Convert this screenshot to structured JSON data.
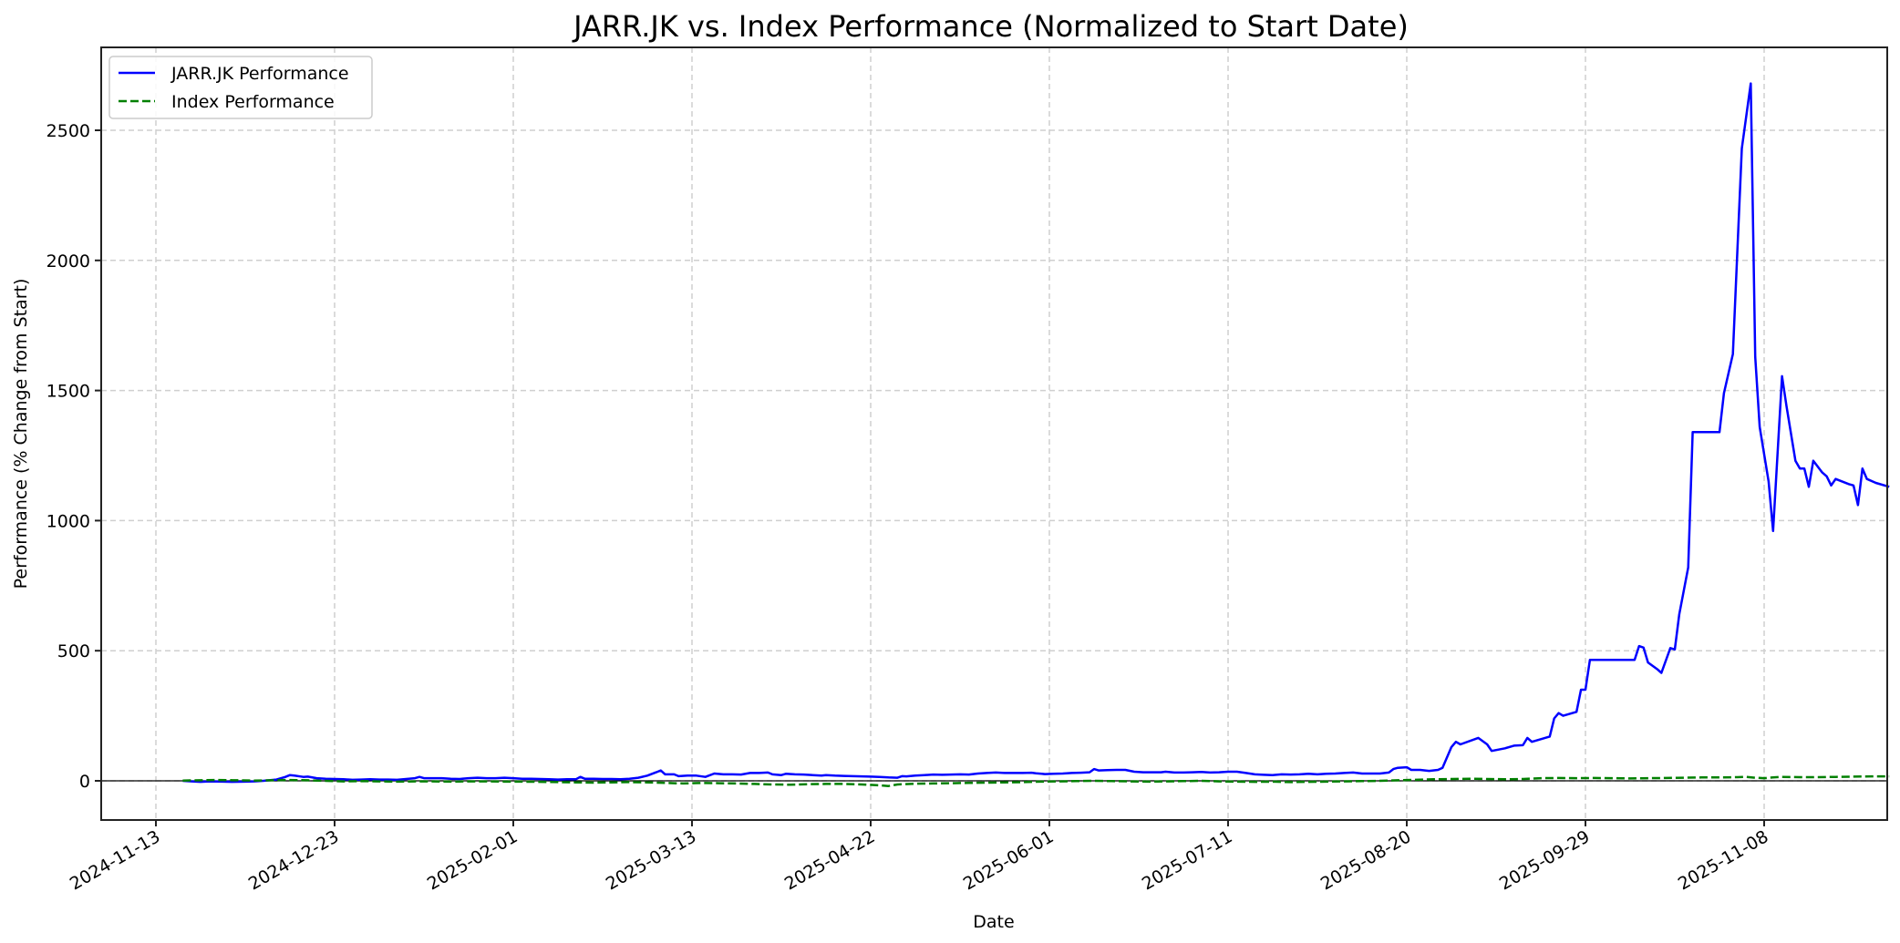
{
  "chart_data": {
    "type": "line",
    "title": "JARR.JK vs. Index Performance (Normalized to Start Date)",
    "xlabel": "Date",
    "ylabel": "Performance (% Change from Start)",
    "x_origin_date": "2024-11-13",
    "x_unit": "days since 2024-11-13",
    "xlim_days": [
      -9,
      396
    ],
    "ylim": [
      -150,
      2850
    ],
    "x_ticks": [
      {
        "label": "2024-11-13",
        "day": 0
      },
      {
        "label": "2024-12-23",
        "day": 40
      },
      {
        "label": "2025-02-01",
        "day": 80
      },
      {
        "label": "2025-03-13",
        "day": 120
      },
      {
        "label": "2025-04-22",
        "day": 160
      },
      {
        "label": "2025-06-01",
        "day": 200
      },
      {
        "label": "2025-07-11",
        "day": 240
      },
      {
        "label": "2025-08-20",
        "day": 280
      },
      {
        "label": "2025-09-29",
        "day": 320
      },
      {
        "label": "2025-11-08",
        "day": 360
      }
    ],
    "y_ticks": [
      0,
      500,
      1000,
      1500,
      2000,
      2500
    ],
    "grid": true,
    "zero_line": true,
    "legend_position": "upper left",
    "series": [
      {
        "name": "JARR.JK Performance",
        "color": "#0000ff",
        "style": "solid",
        "points": [
          [
            6,
            0
          ],
          [
            8,
            -2
          ],
          [
            10,
            -4
          ],
          [
            12,
            -2
          ],
          [
            15,
            -3
          ],
          [
            17,
            -4
          ],
          [
            20,
            -3
          ],
          [
            22,
            -2
          ],
          [
            24,
            0
          ],
          [
            27,
            5
          ],
          [
            29,
            15
          ],
          [
            30,
            22
          ],
          [
            31,
            20
          ],
          [
            33,
            15
          ],
          [
            34,
            16
          ],
          [
            36,
            10
          ],
          [
            38,
            8
          ],
          [
            40,
            7
          ],
          [
            42,
            6
          ],
          [
            44,
            4
          ],
          [
            46,
            5
          ],
          [
            48,
            6
          ],
          [
            50,
            5
          ],
          [
            52,
            5
          ],
          [
            54,
            4
          ],
          [
            56,
            7
          ],
          [
            58,
            10
          ],
          [
            59,
            15
          ],
          [
            60,
            10
          ],
          [
            62,
            10
          ],
          [
            64,
            10
          ],
          [
            66,
            8
          ],
          [
            68,
            7
          ],
          [
            70,
            10
          ],
          [
            72,
            12
          ],
          [
            74,
            10
          ],
          [
            76,
            10
          ],
          [
            78,
            12
          ],
          [
            80,
            10
          ],
          [
            82,
            8
          ],
          [
            84,
            8
          ],
          [
            86,
            7
          ],
          [
            88,
            6
          ],
          [
            90,
            5
          ],
          [
            92,
            6
          ],
          [
            94,
            6
          ],
          [
            95,
            15
          ],
          [
            96,
            8
          ],
          [
            98,
            8
          ],
          [
            100,
            7
          ],
          [
            102,
            7
          ],
          [
            104,
            6
          ],
          [
            106,
            8
          ],
          [
            108,
            12
          ],
          [
            110,
            20
          ],
          [
            112,
            33
          ],
          [
            113,
            40
          ],
          [
            114,
            25
          ],
          [
            116,
            25
          ],
          [
            117,
            18
          ],
          [
            119,
            20
          ],
          [
            121,
            20
          ],
          [
            123,
            15
          ],
          [
            125,
            28
          ],
          [
            127,
            25
          ],
          [
            129,
            25
          ],
          [
            131,
            24
          ],
          [
            133,
            30
          ],
          [
            135,
            30
          ],
          [
            137,
            32
          ],
          [
            138,
            25
          ],
          [
            140,
            22
          ],
          [
            141,
            27
          ],
          [
            143,
            25
          ],
          [
            145,
            24
          ],
          [
            147,
            22
          ],
          [
            149,
            20
          ],
          [
            150,
            22
          ],
          [
            152,
            20
          ],
          [
            154,
            19
          ],
          [
            156,
            18
          ],
          [
            158,
            17
          ],
          [
            160,
            16
          ],
          [
            162,
            15
          ],
          [
            164,
            13
          ],
          [
            166,
            12
          ],
          [
            167,
            18
          ],
          [
            168,
            17
          ],
          [
            170,
            20
          ],
          [
            172,
            22
          ],
          [
            174,
            24
          ],
          [
            176,
            23
          ],
          [
            178,
            24
          ],
          [
            180,
            25
          ],
          [
            182,
            24
          ],
          [
            184,
            28
          ],
          [
            186,
            30
          ],
          [
            188,
            32
          ],
          [
            190,
            30
          ],
          [
            192,
            30
          ],
          [
            194,
            30
          ],
          [
            196,
            31
          ],
          [
            197,
            29
          ],
          [
            199,
            26
          ],
          [
            201,
            27
          ],
          [
            203,
            28
          ],
          [
            205,
            30
          ],
          [
            207,
            31
          ],
          [
            209,
            33
          ],
          [
            210,
            45
          ],
          [
            211,
            40
          ],
          [
            213,
            41
          ],
          [
            215,
            42
          ],
          [
            217,
            42
          ],
          [
            219,
            35
          ],
          [
            221,
            33
          ],
          [
            223,
            33
          ],
          [
            225,
            33
          ],
          [
            226,
            35
          ],
          [
            228,
            32
          ],
          [
            230,
            32
          ],
          [
            232,
            33
          ],
          [
            234,
            34
          ],
          [
            236,
            32
          ],
          [
            238,
            33
          ],
          [
            240,
            35
          ],
          [
            242,
            35
          ],
          [
            244,
            30
          ],
          [
            246,
            25
          ],
          [
            248,
            23
          ],
          [
            250,
            22
          ],
          [
            252,
            25
          ],
          [
            254,
            24
          ],
          [
            256,
            25
          ],
          [
            258,
            27
          ],
          [
            260,
            25
          ],
          [
            262,
            27
          ],
          [
            264,
            28
          ],
          [
            266,
            30
          ],
          [
            268,
            32
          ],
          [
            270,
            28
          ],
          [
            272,
            28
          ],
          [
            274,
            28
          ],
          [
            276,
            32
          ],
          [
            277,
            45
          ],
          [
            278,
            50
          ],
          [
            280,
            52
          ],
          [
            281,
            42
          ],
          [
            283,
            42
          ],
          [
            285,
            38
          ],
          [
            287,
            42
          ],
          [
            288,
            50
          ],
          [
            290,
            130
          ],
          [
            291,
            150
          ],
          [
            292,
            140
          ],
          [
            296,
            165
          ],
          [
            298,
            140
          ],
          [
            299,
            115
          ],
          [
            302,
            125
          ],
          [
            304,
            135
          ],
          [
            306,
            137
          ],
          [
            307,
            165
          ],
          [
            308,
            150
          ],
          [
            312,
            170
          ],
          [
            313,
            240
          ],
          [
            314,
            260
          ],
          [
            315,
            250
          ],
          [
            318,
            265
          ],
          [
            319,
            350
          ],
          [
            320,
            350
          ],
          [
            321,
            465
          ],
          [
            326,
            465
          ],
          [
            327,
            465
          ],
          [
            331,
            465
          ],
          [
            332,
            518
          ],
          [
            333,
            512
          ],
          [
            334,
            455
          ],
          [
            336,
            430
          ],
          [
            337,
            415
          ],
          [
            339,
            510
          ],
          [
            340,
            505
          ],
          [
            341,
            640
          ],
          [
            343,
            820
          ],
          [
            344,
            1340
          ],
          [
            350,
            1340
          ],
          [
            351,
            1490
          ],
          [
            353,
            1640
          ],
          [
            355,
            2430
          ],
          [
            357,
            2680
          ],
          [
            358,
            1630
          ],
          [
            359,
            1360
          ],
          [
            361,
            1150
          ],
          [
            362,
            960
          ],
          [
            364,
            1555
          ],
          [
            365,
            1440
          ],
          [
            367,
            1230
          ],
          [
            368,
            1200
          ],
          [
            369,
            1200
          ],
          [
            370,
            1130
          ],
          [
            371,
            1230
          ],
          [
            373,
            1185
          ],
          [
            374,
            1170
          ],
          [
            375,
            1135
          ],
          [
            376,
            1160
          ],
          [
            379,
            1140
          ],
          [
            380,
            1135
          ],
          [
            381,
            1060
          ],
          [
            382,
            1200
          ],
          [
            383,
            1160
          ],
          [
            385,
            1145
          ],
          [
            388,
            1130
          ]
        ]
      },
      {
        "name": "Index Performance",
        "color": "#008000",
        "style": "dashed",
        "points": [
          [
            6,
            1
          ],
          [
            10,
            2
          ],
          [
            14,
            3
          ],
          [
            18,
            2
          ],
          [
            22,
            1
          ],
          [
            26,
            2
          ],
          [
            30,
            3
          ],
          [
            34,
            2
          ],
          [
            38,
            0
          ],
          [
            42,
            -2
          ],
          [
            46,
            -1
          ],
          [
            50,
            -2
          ],
          [
            54,
            -3
          ],
          [
            58,
            -2
          ],
          [
            62,
            -2
          ],
          [
            66,
            -3
          ],
          [
            70,
            -2
          ],
          [
            74,
            -2
          ],
          [
            78,
            -3
          ],
          [
            82,
            -3
          ],
          [
            86,
            -4
          ],
          [
            90,
            -5
          ],
          [
            94,
            -6
          ],
          [
            98,
            -7
          ],
          [
            102,
            -6
          ],
          [
            106,
            -5
          ],
          [
            110,
            -6
          ],
          [
            114,
            -8
          ],
          [
            118,
            -10
          ],
          [
            122,
            -8
          ],
          [
            126,
            -9
          ],
          [
            130,
            -10
          ],
          [
            134,
            -12
          ],
          [
            138,
            -14
          ],
          [
            142,
            -15
          ],
          [
            146,
            -13
          ],
          [
            150,
            -12
          ],
          [
            154,
            -12
          ],
          [
            158,
            -14
          ],
          [
            162,
            -17
          ],
          [
            164,
            -20
          ],
          [
            166,
            -14
          ],
          [
            170,
            -11
          ],
          [
            174,
            -10
          ],
          [
            178,
            -9
          ],
          [
            182,
            -8
          ],
          [
            186,
            -7
          ],
          [
            190,
            -6
          ],
          [
            194,
            -5
          ],
          [
            198,
            -3
          ],
          [
            202,
            -2
          ],
          [
            206,
            -1
          ],
          [
            210,
            0
          ],
          [
            214,
            -1
          ],
          [
            218,
            -2
          ],
          [
            222,
            -3
          ],
          [
            226,
            -2
          ],
          [
            230,
            -1
          ],
          [
            234,
            0
          ],
          [
            238,
            -2
          ],
          [
            242,
            -3
          ],
          [
            246,
            -4
          ],
          [
            250,
            -3
          ],
          [
            254,
            -5
          ],
          [
            258,
            -4
          ],
          [
            262,
            -3
          ],
          [
            266,
            -2
          ],
          [
            270,
            -1
          ],
          [
            274,
            0
          ],
          [
            278,
            2
          ],
          [
            282,
            4
          ],
          [
            286,
            6
          ],
          [
            290,
            7
          ],
          [
            294,
            8
          ],
          [
            298,
            7
          ],
          [
            302,
            6
          ],
          [
            306,
            7
          ],
          [
            310,
            10
          ],
          [
            314,
            11
          ],
          [
            318,
            10
          ],
          [
            322,
            11
          ],
          [
            326,
            10
          ],
          [
            330,
            9
          ],
          [
            334,
            10
          ],
          [
            338,
            11
          ],
          [
            342,
            12
          ],
          [
            346,
            13
          ],
          [
            350,
            13
          ],
          [
            354,
            14
          ],
          [
            356,
            15
          ],
          [
            358,
            12
          ],
          [
            360,
            10
          ],
          [
            362,
            13
          ],
          [
            364,
            15
          ],
          [
            368,
            14
          ],
          [
            372,
            14
          ],
          [
            376,
            15
          ],
          [
            380,
            16
          ],
          [
            384,
            17
          ],
          [
            388,
            17
          ]
        ]
      }
    ]
  },
  "legend": {
    "items": [
      {
        "label": "JARR.JK Performance"
      },
      {
        "label": "Index Performance"
      }
    ]
  }
}
